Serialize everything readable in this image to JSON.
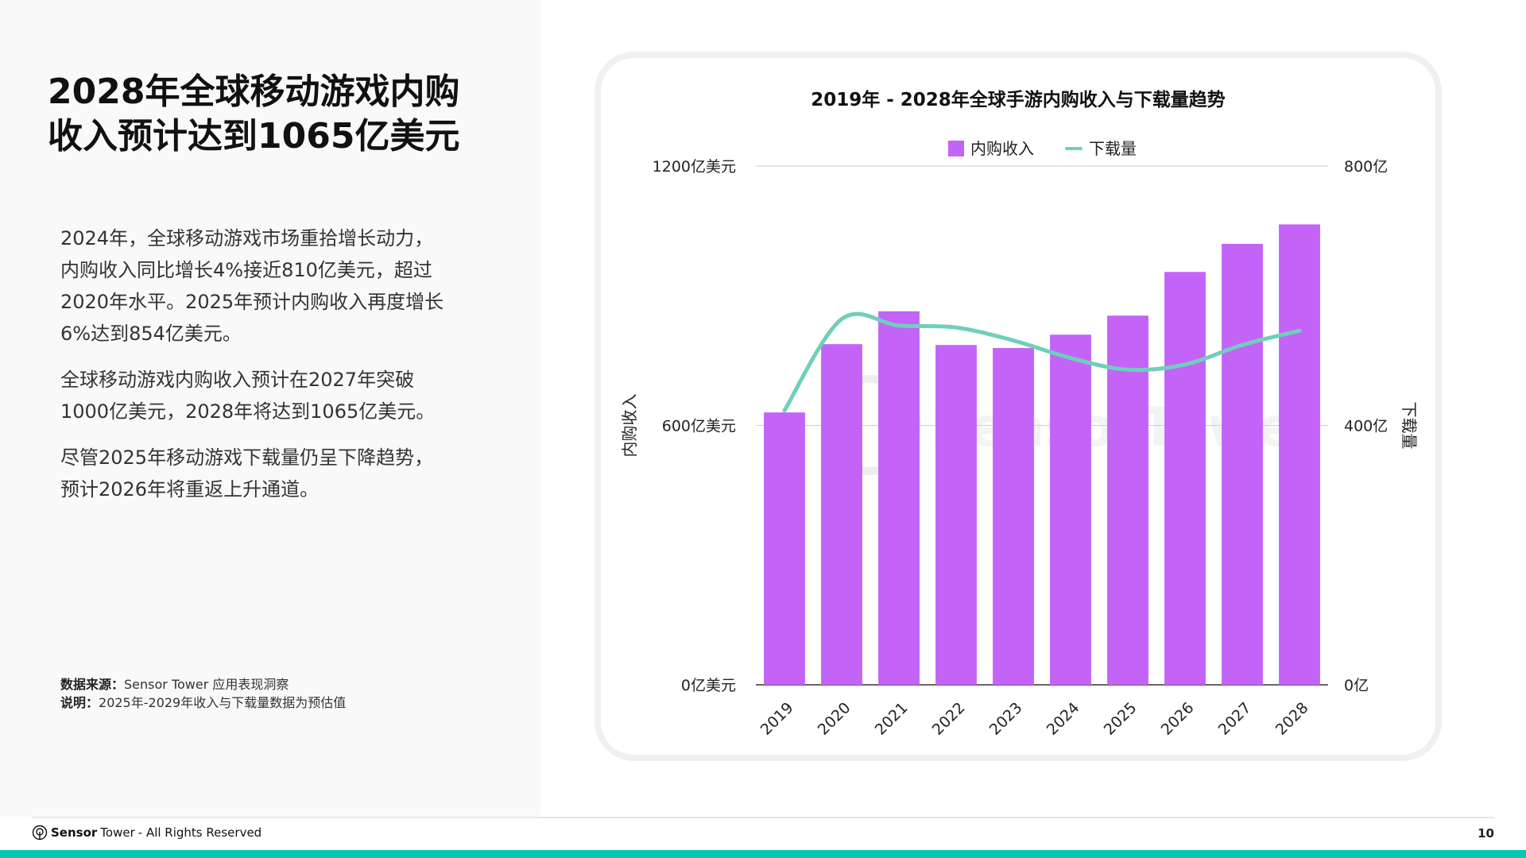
{
  "heading": [
    "2028年全球移动游戏内购",
    "收入预计达到1065亿美元"
  ],
  "paragraphs": [
    [
      "2024年，全球移动游戏市场重拾增长动力，",
      "内购收入同比增长4%接近810亿美元，超过",
      "2020年水平。2025年预计内购收入再度增长",
      "6%达到854亿美元。"
    ],
    [
      "全球移动游戏内购收入预计在2027年突破",
      "1000亿美元，2028年将达到1065亿美元。"
    ],
    [
      "尽管2025年移动游戏下载量仍呈下降趋势，",
      "预计2026年将重返上升通道。"
    ]
  ],
  "notes": {
    "source_label": "数据来源：",
    "source_text": "Sensor Tower 应用表现洞察",
    "note_label": "说明：",
    "note_text": "2025年-2029年收入与下载量数据为预估值"
  },
  "footer": {
    "brand_bold": "Sensor",
    "brand_light": "Tower",
    "rights": " - All Rights Reserved",
    "page": "10"
  },
  "colors": {
    "bar": "#c463f7",
    "line": "#6fcfbb",
    "accent": "#00c9b1"
  },
  "watermark": "SensorTower",
  "chart_data": {
    "type": "bar+line",
    "title": "2019年 - 2028年全球手游内购收入与下载量趋势",
    "categories": [
      "2019",
      "2020",
      "2021",
      "2022",
      "2023",
      "2024",
      "2025",
      "2026",
      "2027",
      "2028"
    ],
    "series": [
      {
        "name": "内购收入",
        "type": "bar",
        "axis": "left",
        "values": [
          630,
          788,
          864,
          786,
          779,
          810,
          854,
          955,
          1020,
          1065
        ]
      },
      {
        "name": "下载量",
        "type": "line",
        "axis": "right",
        "values": [
          423,
          564,
          554,
          551,
          531,
          504,
          486,
          494,
          524,
          546
        ]
      }
    ],
    "ylabel_left": "内购收入",
    "ylabel_right": "下载量",
    "ylim_left": [
      0,
      1200
    ],
    "ylim_right": [
      0,
      800
    ],
    "yticks_left": [
      "0亿美元",
      "600亿美元",
      "1200亿美元"
    ],
    "yticks_right": [
      "0亿",
      "400亿",
      "800亿"
    ],
    "legend": "top-center",
    "grid": true
  }
}
